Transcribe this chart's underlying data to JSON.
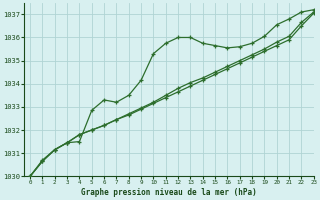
{
  "title": "Graphe pression niveau de la mer (hPa)",
  "background_color": "#d8f0f0",
  "grid_color": "#b0d4d4",
  "line_color": "#2d6e2d",
  "marker_color": "#2d6e2d",
  "xlim": [
    -0.5,
    23
  ],
  "ylim": [
    1030.0,
    1037.5
  ],
  "yticks": [
    1030,
    1031,
    1032,
    1033,
    1034,
    1035,
    1036,
    1037
  ],
  "xticks": [
    0,
    1,
    2,
    3,
    4,
    5,
    6,
    7,
    8,
    9,
    10,
    11,
    12,
    13,
    14,
    15,
    16,
    17,
    18,
    19,
    20,
    21,
    22,
    23
  ],
  "series1_x": [
    0,
    1,
    2,
    3,
    4,
    5,
    6,
    7,
    8,
    9,
    10,
    11,
    12,
    13,
    14,
    15,
    16,
    17,
    18,
    19,
    20,
    21,
    22,
    23
  ],
  "series1_y": [
    1030.0,
    1030.7,
    1031.15,
    1031.45,
    1031.5,
    1032.85,
    1033.3,
    1033.2,
    1033.5,
    1034.15,
    1035.3,
    1035.75,
    1036.0,
    1036.0,
    1035.75,
    1035.65,
    1035.55,
    1035.6,
    1035.75,
    1036.05,
    1036.55,
    1036.8,
    1037.1,
    1037.2
  ],
  "series2_x": [
    0,
    1,
    2,
    3,
    4,
    5,
    6,
    7,
    8,
    9,
    10,
    11,
    12,
    13,
    14,
    15,
    16,
    17,
    18,
    19,
    20,
    21,
    22,
    23
  ],
  "series2_y": [
    1030.0,
    1030.65,
    1031.15,
    1031.45,
    1031.8,
    1032.0,
    1032.2,
    1032.45,
    1032.7,
    1032.95,
    1033.2,
    1033.5,
    1033.8,
    1034.05,
    1034.25,
    1034.5,
    1034.75,
    1035.0,
    1035.25,
    1035.5,
    1035.8,
    1036.05,
    1036.65,
    1037.1
  ],
  "series3_x": [
    0,
    1,
    2,
    3,
    4,
    5,
    6,
    7,
    8,
    9,
    10,
    11,
    12,
    13,
    14,
    15,
    16,
    17,
    18,
    19,
    20,
    21,
    22,
    23
  ],
  "series3_y": [
    1030.0,
    1030.65,
    1031.15,
    1031.45,
    1031.8,
    1032.0,
    1032.2,
    1032.45,
    1032.65,
    1032.9,
    1033.15,
    1033.4,
    1033.65,
    1033.9,
    1034.15,
    1034.4,
    1034.65,
    1034.9,
    1035.15,
    1035.4,
    1035.65,
    1035.9,
    1036.5,
    1037.05
  ]
}
